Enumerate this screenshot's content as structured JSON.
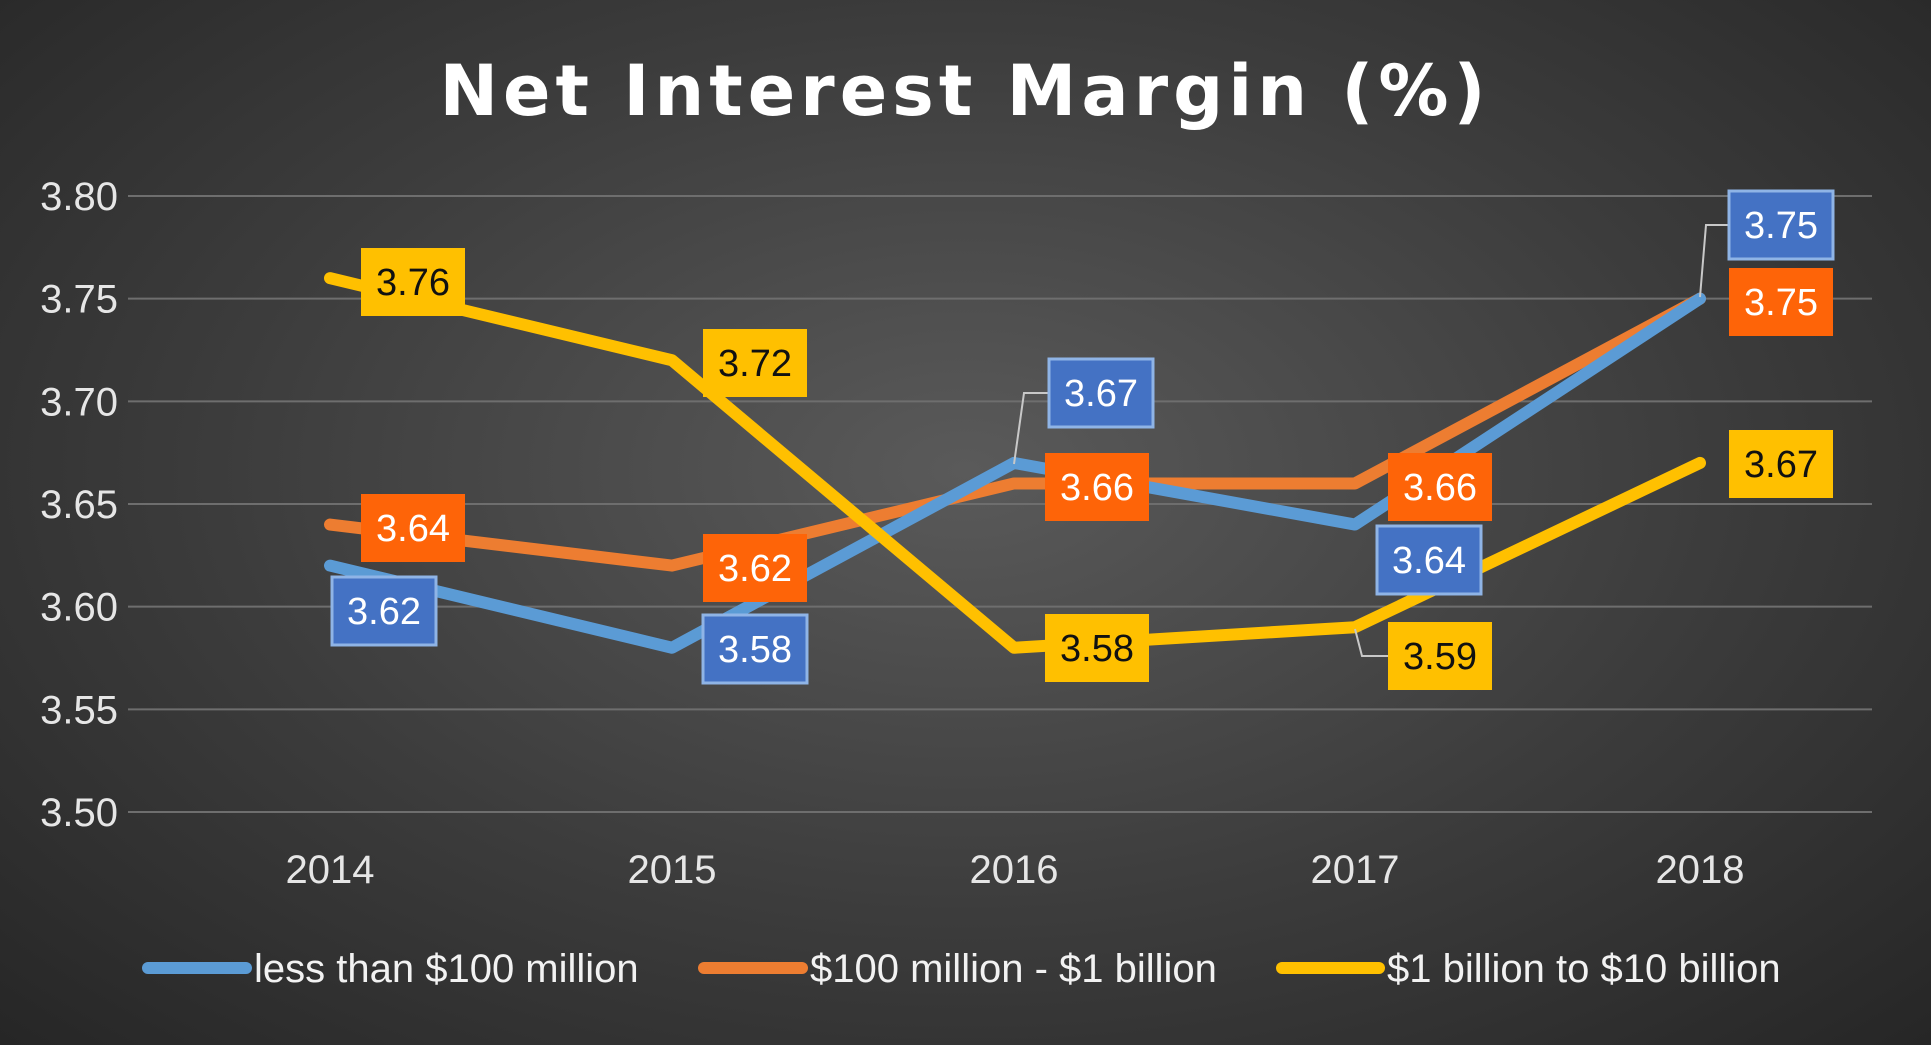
{
  "chart_data": {
    "type": "line",
    "title": "Net Interest Margin (%)",
    "xlabel": "",
    "ylabel": "",
    "categories": [
      "2014",
      "2015",
      "2016",
      "2017",
      "2018"
    ],
    "ylim": [
      3.5,
      3.8
    ],
    "yticks": [
      "3.50",
      "3.55",
      "3.60",
      "3.65",
      "3.70",
      "3.75",
      "3.80"
    ],
    "grid": true,
    "legend_position": "bottom",
    "series": [
      {
        "name": "less than $100 million",
        "color": "#5b9bd5",
        "label_bg": "#4472c4",
        "label_color": "#ffffff",
        "values": [
          3.62,
          3.58,
          3.67,
          3.64,
          3.75
        ],
        "labels": [
          "3.62",
          "3.58",
          "3.67",
          "3.64",
          "3.75"
        ]
      },
      {
        "name": "$100 million - $1 billion",
        "color": "#ed7d31",
        "label_bg": "#fe6408",
        "label_color": "#ffffff",
        "values": [
          3.64,
          3.62,
          3.66,
          3.66,
          3.75
        ],
        "labels": [
          "3.64",
          "3.62",
          "3.66",
          "3.66",
          "3.75"
        ]
      },
      {
        "name": "$1 billion to $10 billion",
        "color": "#ffc000",
        "label_bg": "#ffc000",
        "label_color": "#111111",
        "values": [
          3.76,
          3.72,
          3.58,
          3.59,
          3.67
        ],
        "labels": [
          "3.76",
          "3.72",
          "3.58",
          "3.59",
          "3.67"
        ]
      }
    ]
  }
}
